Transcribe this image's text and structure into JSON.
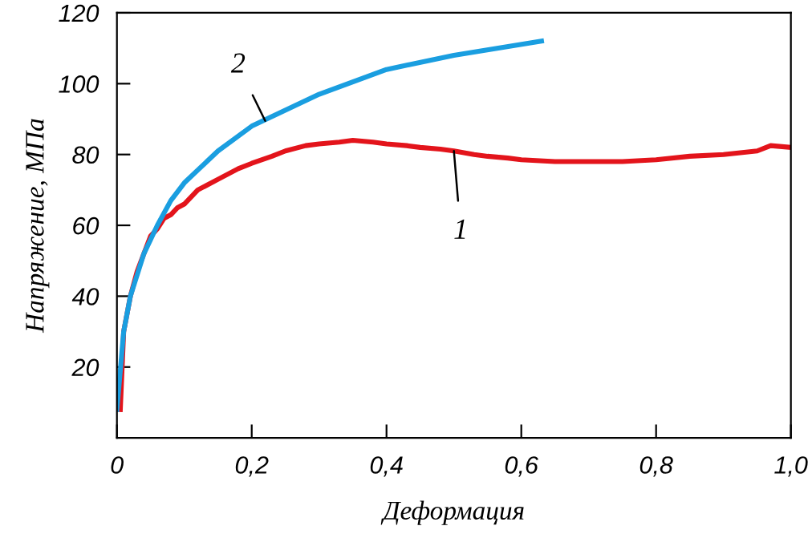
{
  "chart_data": {
    "type": "line",
    "xlabel": "Деформация",
    "ylabel": "Напряжение, МПа",
    "series": [
      {
        "color": "#e3141b",
        "x": [
          0.005,
          0.01,
          0.02,
          0.03,
          0.04,
          0.05,
          0.06,
          0.07,
          0.08,
          0.09,
          0.1,
          0.12,
          0.15,
          0.18,
          0.2,
          0.23,
          0.25,
          0.28,
          0.3,
          0.33,
          0.35,
          0.38,
          0.4,
          0.43,
          0.45,
          0.48,
          0.5,
          0.53,
          0.55,
          0.58,
          0.6,
          0.65,
          0.7,
          0.75,
          0.8,
          0.85,
          0.9,
          0.95,
          0.97,
          1.0
        ],
        "values": [
          8,
          30,
          40,
          47,
          52,
          57,
          59,
          62,
          63,
          65,
          66,
          70,
          73,
          76,
          77.5,
          79.5,
          81,
          82.5,
          83,
          83.5,
          84,
          83.5,
          83,
          82.5,
          82,
          81.5,
          81,
          80,
          79.5,
          79,
          78.5,
          78,
          78,
          78,
          78.5,
          79.5,
          80,
          81,
          82.5,
          82
        ]
      },
      {
        "color": "#1a9ee0",
        "x": [
          0.0,
          0.01,
          0.02,
          0.04,
          0.06,
          0.08,
          0.1,
          0.15,
          0.2,
          0.3,
          0.4,
          0.5,
          0.63
        ],
        "values": [
          8,
          30,
          40,
          52,
          60,
          67,
          72,
          81,
          88,
          97,
          104,
          108,
          112
        ]
      }
    ],
    "xlim": [
      0,
      1.0
    ],
    "ylim": [
      0,
      120
    ],
    "xticks": [
      0,
      {
        "value": 0.2,
        "label": "0,2"
      },
      {
        "value": 0.4,
        "label": "0,4"
      },
      {
        "value": 0.6,
        "label": "0,6"
      },
      {
        "value": 0.8,
        "label": "0,8"
      },
      {
        "value": 1.0,
        "label": "1,0"
      }
    ],
    "yticks": [
      20,
      40,
      60,
      80,
      100,
      120
    ],
    "grid": false,
    "line_style": "solid",
    "annotations": [
      {
        "text": "1",
        "x": 0.5,
        "y": 81
      },
      {
        "text": "2",
        "x": 0.22,
        "y": 89.5
      }
    ]
  }
}
